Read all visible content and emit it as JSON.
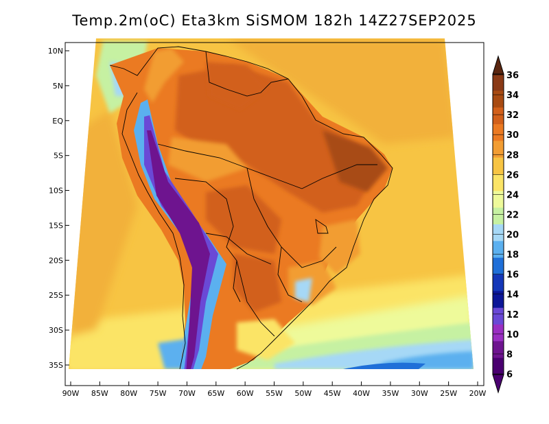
{
  "title": "Temp.2m(oC) Eta3km SiSMOM 182h 14Z27SEP2025",
  "map": {
    "lat_labels": [
      "10N",
      "5N",
      "EQ",
      "5S",
      "10S",
      "15S",
      "20S",
      "25S",
      "30S",
      "35S"
    ],
    "lon_labels": [
      "90W",
      "85W",
      "80W",
      "75W",
      "70W",
      "65W",
      "60W",
      "55W",
      "50W",
      "45W",
      "40W",
      "35W",
      "30W",
      "25W",
      "20W"
    ]
  },
  "colorbar": {
    "labels": [
      "36",
      "34",
      "32",
      "30",
      "28",
      "26",
      "24",
      "22",
      "20",
      "18",
      "16",
      "14",
      "12",
      "10",
      "8",
      "6"
    ],
    "colors": [
      "#8a3a16",
      "#a84b12",
      "#d2601a",
      "#eb7a22",
      "#f29d33",
      "#f7c443",
      "#fbe466",
      "#eefa9a",
      "#c6f1a2",
      "#a6d8f6",
      "#5bb0ef",
      "#1f6fd8",
      "#1437b8",
      "#0c1697",
      "#6a49d6",
      "#9a2fc2",
      "#6e148f",
      "#4a0070"
    ],
    "arrow_top_color": "#5a2610",
    "arrow_bottom_color": "#4a0070"
  }
}
